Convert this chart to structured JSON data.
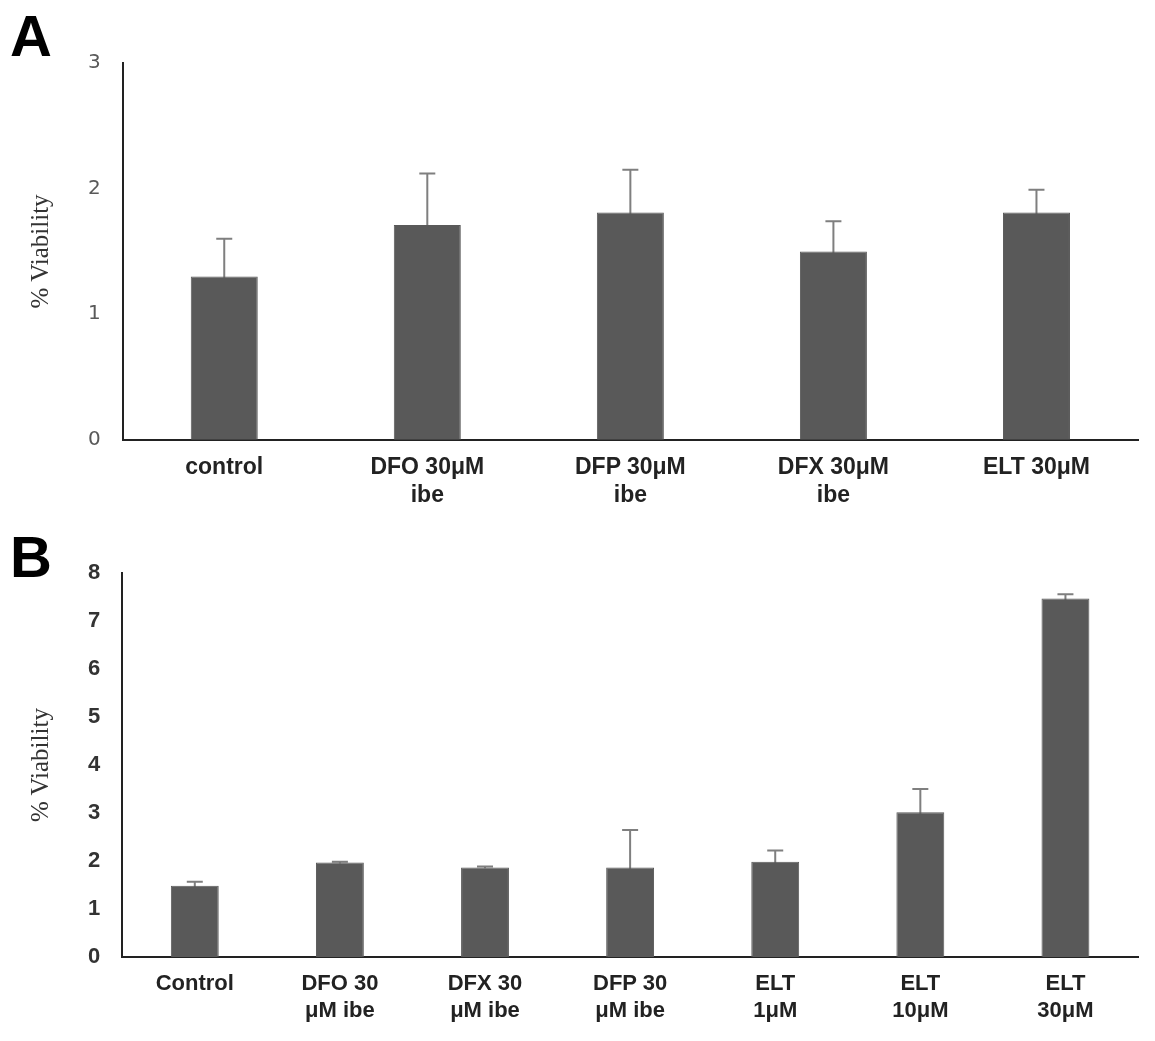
{
  "chart_data": [
    {
      "type": "bar",
      "title": "A",
      "ylabel": "% Viability",
      "categories": [
        "control",
        "DFO 30μM ibe",
        "DFP 30μM ibe",
        "DFX 30μM ibe",
        "ELT 30μM"
      ],
      "values": [
        1.3,
        1.71,
        1.81,
        1.5,
        1.81
      ],
      "errors": [
        0.3,
        0.41,
        0.34,
        0.24,
        0.18
      ],
      "color": "#595959",
      "ylim": [
        0,
        3
      ],
      "yticks": [
        0,
        1,
        2,
        3
      ]
    },
    {
      "type": "bar",
      "title": "B",
      "ylabel": "% Viability",
      "categories": [
        "Control",
        "DFO 30 μM ibe",
        "DFX 30 μM ibe",
        "DFP 30 μM ibe",
        "ELT 1μM",
        "ELT 10μM",
        "ELT 30μM"
      ],
      "values": [
        1.49,
        1.97,
        1.87,
        1.87,
        1.99,
        3.02,
        7.47
      ],
      "errors": [
        0.08,
        0.02,
        0.02,
        0.78,
        0.23,
        0.48,
        0.09
      ],
      "color": "#595959",
      "ylim": [
        0,
        8
      ],
      "yticks": [
        0,
        1,
        2,
        3,
        4,
        5,
        6,
        7,
        8
      ]
    }
  ]
}
